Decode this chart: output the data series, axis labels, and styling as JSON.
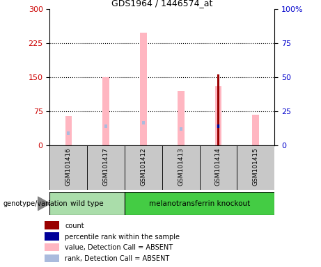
{
  "title": "GDS1964 / 1446574_at",
  "samples": [
    "GSM101416",
    "GSM101417",
    "GSM101412",
    "GSM101413",
    "GSM101414",
    "GSM101415"
  ],
  "bars": {
    "GSM101416": {
      "value_absent": 65,
      "rank_absent": 27,
      "count": null,
      "percentile": null
    },
    "GSM101417": {
      "value_absent": 150,
      "rank_absent": 43,
      "count": null,
      "percentile": null
    },
    "GSM101412": {
      "value_absent": 248,
      "rank_absent": 50,
      "count": null,
      "percentile": null
    },
    "GSM101413": {
      "value_absent": 120,
      "rank_absent": 37,
      "count": null,
      "percentile": null
    },
    "GSM101414": {
      "value_absent": 130,
      "rank_absent": 42,
      "count": 157,
      "percentile": 42
    },
    "GSM101415": {
      "value_absent": 68,
      "rank_absent": null,
      "count": null,
      "percentile": null
    }
  },
  "ylim_left": [
    0,
    300
  ],
  "ylim_right": [
    0,
    100
  ],
  "yticks_left": [
    0,
    75,
    150,
    225,
    300
  ],
  "yticks_right": [
    0,
    25,
    50,
    75,
    100
  ],
  "color_value_absent": "#FFB6C1",
  "color_rank_absent": "#AABBDD",
  "color_count": "#990000",
  "color_percentile": "#000099",
  "left_axis_color": "#CC0000",
  "right_axis_color": "#0000CC",
  "genotype_label": "genotype/variation",
  "wt_color": "#AADDAA",
  "ko_color": "#44CC44",
  "xticklabel_bg": "#C8C8C8",
  "legend_items": [
    {
      "color": "#990000",
      "label": "count"
    },
    {
      "color": "#000099",
      "label": "percentile rank within the sample"
    },
    {
      "color": "#FFB6C1",
      "label": "value, Detection Call = ABSENT"
    },
    {
      "color": "#AABBDD",
      "label": "rank, Detection Call = ABSENT"
    }
  ]
}
